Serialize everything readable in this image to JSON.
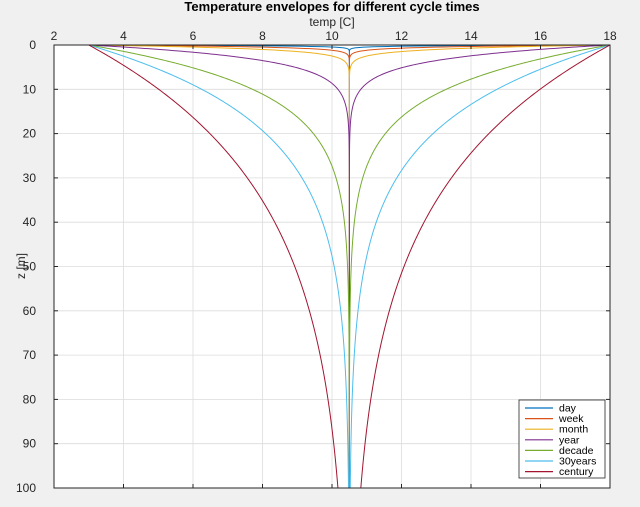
{
  "chart_data": {
    "type": "line",
    "title": "Temperature envelopes for different cycle times",
    "xlabel": "temp [C]",
    "ylabel": "z [m]",
    "xlim": [
      2,
      18
    ],
    "ylim": [
      0,
      100
    ],
    "y_reversed": true,
    "x_axis_location": "top",
    "xticks": [
      2,
      4,
      6,
      8,
      10,
      12,
      14,
      16,
      18
    ],
    "yticks": [
      0,
      10,
      20,
      30,
      40,
      50,
      60,
      70,
      80,
      90,
      100
    ],
    "grid": true,
    "legend_position": "bottom-right",
    "mean_temp": 10.5,
    "surface_amplitude": 7.5,
    "series": [
      {
        "name": "day",
        "color": "#0072bd",
        "damping_depth": 0.17
      },
      {
        "name": "week",
        "color": "#d95319",
        "damping_depth": 0.44
      },
      {
        "name": "month",
        "color": "#edb120",
        "damping_depth": 0.92
      },
      {
        "name": "year",
        "color": "#7e2f8e",
        "damping_depth": 3.2
      },
      {
        "name": "decade",
        "color": "#77ac30",
        "damping_depth": 10.1
      },
      {
        "name": "30years",
        "color": "#4dbeee",
        "damping_depth": 17.6
      },
      {
        "name": "century",
        "color": "#a2142f",
        "damping_depth": 32
      }
    ]
  }
}
